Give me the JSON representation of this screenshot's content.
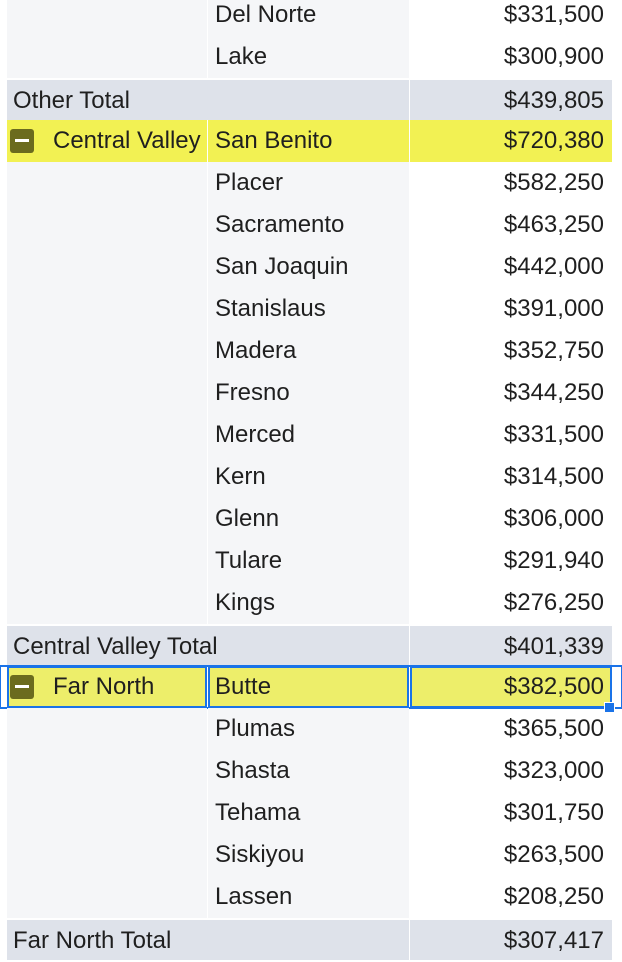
{
  "pivot": {
    "rows": [
      {
        "type": "item",
        "region": "",
        "county": "Del Norte",
        "value": "$331,500"
      },
      {
        "type": "item",
        "region": "",
        "county": "Lake",
        "value": "$300,900"
      },
      {
        "type": "total",
        "label": "Other Total",
        "value": "$439,805"
      },
      {
        "type": "group",
        "region": "Central Valley",
        "county": "San Benito",
        "value": "$720,380"
      },
      {
        "type": "item",
        "region": "",
        "county": "Placer",
        "value": "$582,250"
      },
      {
        "type": "item",
        "region": "",
        "county": "Sacramento",
        "value": "$463,250"
      },
      {
        "type": "item",
        "region": "",
        "county": "San Joaquin",
        "value": "$442,000"
      },
      {
        "type": "item",
        "region": "",
        "county": "Stanislaus",
        "value": "$391,000"
      },
      {
        "type": "item",
        "region": "",
        "county": "Madera",
        "value": "$352,750"
      },
      {
        "type": "item",
        "region": "",
        "county": "Fresno",
        "value": "$344,250"
      },
      {
        "type": "item",
        "region": "",
        "county": "Merced",
        "value": "$331,500"
      },
      {
        "type": "item",
        "region": "",
        "county": "Kern",
        "value": "$314,500"
      },
      {
        "type": "item",
        "region": "",
        "county": "Glenn",
        "value": "$306,000"
      },
      {
        "type": "item",
        "region": "",
        "county": "Tulare",
        "value": "$291,940"
      },
      {
        "type": "item",
        "region": "",
        "county": "Kings",
        "value": "$276,250"
      },
      {
        "type": "total",
        "label": "Central Valley Total",
        "value": "$401,339"
      },
      {
        "type": "group",
        "region": "Far North",
        "county": "Butte",
        "value": "$382,500"
      },
      {
        "type": "item",
        "region": "",
        "county": "Plumas",
        "value": "$365,500"
      },
      {
        "type": "item",
        "region": "",
        "county": "Shasta",
        "value": "$323,000"
      },
      {
        "type": "item",
        "region": "",
        "county": "Tehama",
        "value": "$301,750"
      },
      {
        "type": "item",
        "region": "",
        "county": "Siskiyou",
        "value": "$263,500"
      },
      {
        "type": "item",
        "region": "",
        "county": "Lassen",
        "value": "$208,250"
      },
      {
        "type": "total",
        "label": "Far North Total",
        "value": "$307,417"
      }
    ]
  },
  "colors": {
    "group_highlight": "#f2f153",
    "selected_row_highlight": "#edee6a",
    "total_row": "#dee2ea",
    "side_column": "#f5f6f8",
    "selection": "#1a73e8",
    "collapse_button": "#6b6b1e"
  },
  "icons": {
    "collapse": "minus-square-icon"
  }
}
